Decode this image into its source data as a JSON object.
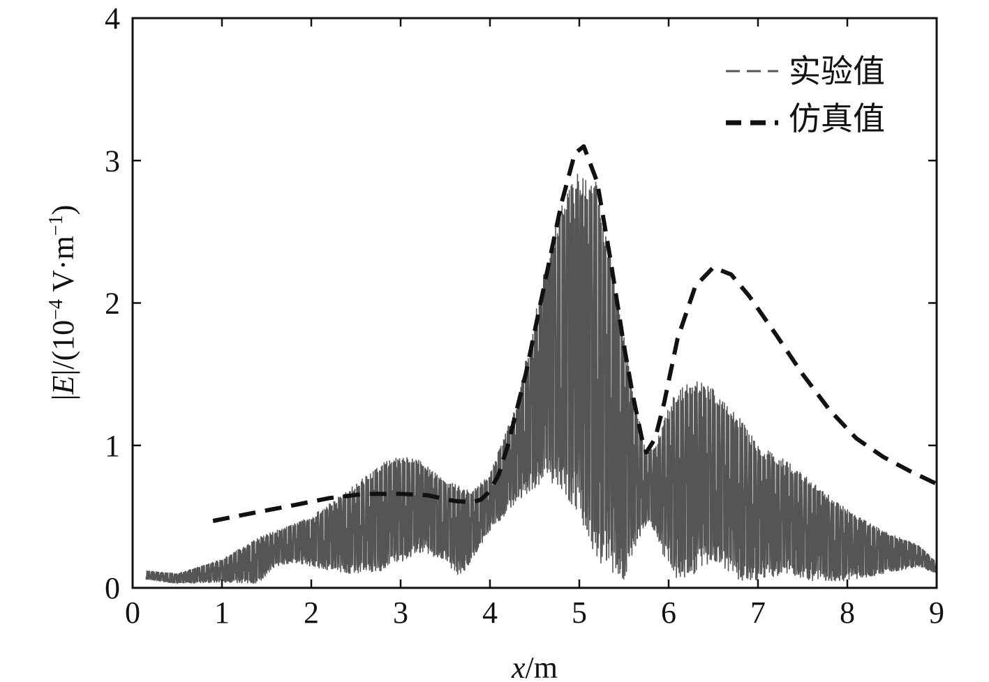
{
  "chart_data": {
    "type": "line",
    "title": "",
    "xlabel_italic": "x",
    "xlabel_rest": "/m",
    "ylabel_pre": "|",
    "ylabel_italic": "E",
    "ylabel_mid": "|/(10",
    "ylabel_sup1": "−4",
    "ylabel_unit": " V·m",
    "ylabel_sup2": "−1",
    "ylabel_end": ")",
    "xlim": [
      0,
      9
    ],
    "ylim": [
      0,
      4
    ],
    "x_ticks": [
      "0",
      "1",
      "2",
      "3",
      "4",
      "5",
      "6",
      "7",
      "8",
      "9"
    ],
    "y_ticks": [
      "0",
      "1",
      "2",
      "3",
      "4"
    ],
    "grid": false,
    "legend_position": "top-right",
    "series": [
      {
        "name": "实验值",
        "color": "#555555",
        "style": "dense-oscillating",
        "x_range": [
          0.15,
          9.0
        ],
        "envelope": {
          "x": [
            0.15,
            0.5,
            1.0,
            1.4,
            1.6,
            1.8,
            2.0,
            2.4,
            2.8,
            3.0,
            3.2,
            3.5,
            3.65,
            3.8,
            4.0,
            4.3,
            4.6,
            4.8,
            5.0,
            5.2,
            5.4,
            5.5,
            5.6,
            5.75,
            5.85,
            5.95,
            6.1,
            6.3,
            6.5,
            6.8,
            7.0,
            7.3,
            7.6,
            8.0,
            8.4,
            8.8,
            9.0
          ],
          "upper": [
            0.12,
            0.1,
            0.2,
            0.35,
            0.4,
            0.45,
            0.5,
            0.68,
            0.88,
            0.93,
            0.9,
            0.75,
            0.72,
            0.68,
            0.8,
            1.3,
            2.2,
            2.7,
            2.95,
            2.85,
            2.2,
            1.8,
            1.4,
            0.95,
            1.0,
            1.2,
            1.4,
            1.48,
            1.4,
            1.2,
            1.0,
            0.9,
            0.75,
            0.55,
            0.4,
            0.3,
            0.18
          ],
          "lower": [
            0.06,
            0.03,
            0.04,
            0.03,
            0.15,
            0.18,
            0.15,
            0.1,
            0.12,
            0.18,
            0.25,
            0.2,
            0.06,
            0.2,
            0.4,
            0.6,
            0.75,
            0.7,
            0.5,
            0.2,
            0.08,
            0.06,
            0.25,
            0.45,
            0.4,
            0.2,
            0.06,
            0.1,
            0.2,
            0.05,
            0.05,
            0.1,
            0.05,
            0.05,
            0.1,
            0.15,
            0.1
          ]
        }
      },
      {
        "name": "仿真值",
        "color": "#111111",
        "style": "dashed",
        "x": [
          0.9,
          1.3,
          1.8,
          2.2,
          2.6,
          3.0,
          3.3,
          3.6,
          3.8,
          3.9,
          4.0,
          4.1,
          4.2,
          4.4,
          4.6,
          4.8,
          4.95,
          5.05,
          5.2,
          5.35,
          5.5,
          5.6,
          5.7,
          5.75,
          5.85,
          5.95,
          6.1,
          6.3,
          6.5,
          6.7,
          6.9,
          7.2,
          7.5,
          7.8,
          8.1,
          8.4,
          8.7,
          9.0
        ],
        "values": [
          0.47,
          0.52,
          0.58,
          0.63,
          0.66,
          0.66,
          0.65,
          0.61,
          0.6,
          0.62,
          0.68,
          0.8,
          1.0,
          1.5,
          2.1,
          2.7,
          3.05,
          3.1,
          2.85,
          2.3,
          1.7,
          1.35,
          1.05,
          0.95,
          1.05,
          1.3,
          1.75,
          2.12,
          2.25,
          2.2,
          2.05,
          1.78,
          1.5,
          1.25,
          1.05,
          0.92,
          0.82,
          0.73
        ]
      }
    ]
  }
}
